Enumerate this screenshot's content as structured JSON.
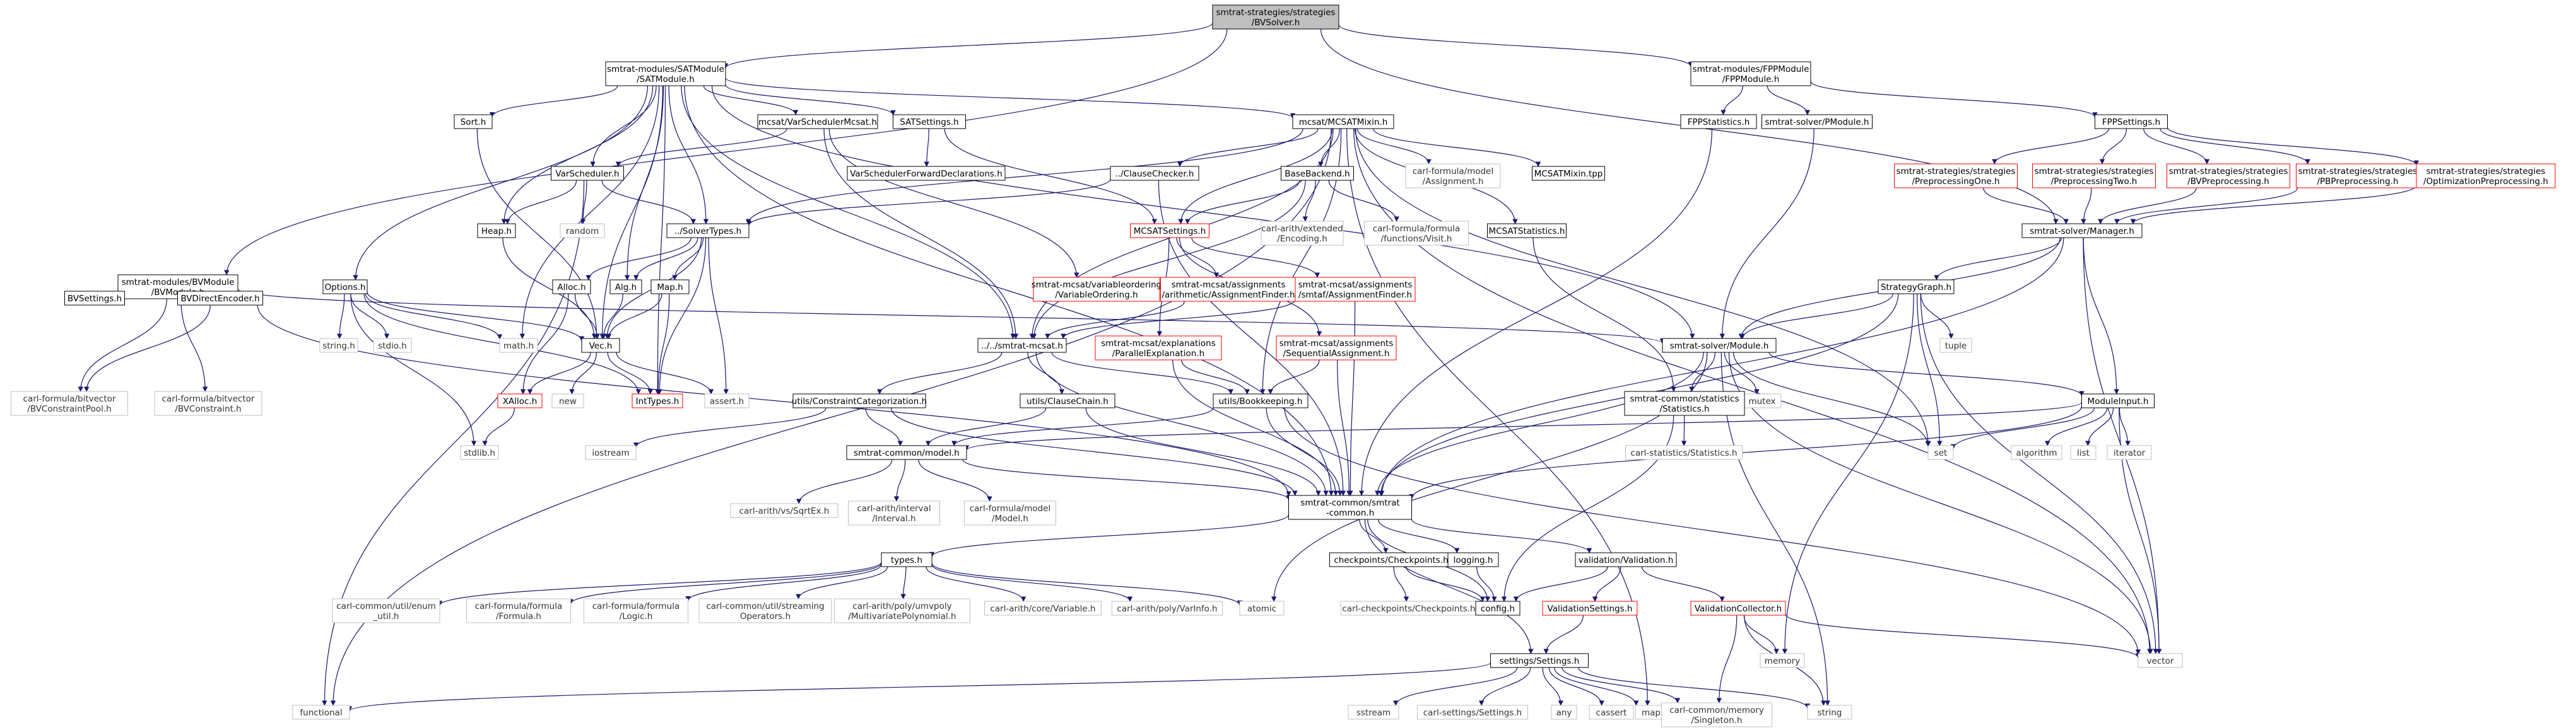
{
  "graph_title": "smtrat-strategies/strategies/BVSolver.h",
  "style": {
    "root_fill": "#bfbfbf",
    "node_border": "#000000",
    "missing_border": "#ff0000",
    "external_border": "#bfbfbf",
    "edge_color": "#191970"
  },
  "nodes": {
    "root": {
      "lines": [
        "smtrat-strategies/strategies",
        "/BVSolver.h"
      ],
      "kind": "root"
    },
    "sat": {
      "lines": [
        "smtrat-modules/SATModule",
        "/SATModule.h"
      ],
      "kind": "normal"
    },
    "fpp": {
      "lines": [
        "smtrat-modules/FPPModule",
        "/FPPModule.h"
      ],
      "kind": "normal"
    },
    "bvmod": {
      "lines": [
        "smtrat-modules/BVModule",
        "/BVModule.h"
      ],
      "kind": "normal"
    },
    "sort": {
      "lines": [
        "Sort.h"
      ],
      "kind": "normal"
    },
    "vsmcsat": {
      "lines": [
        "mcsat/VarSchedulerMcsat.h"
      ],
      "kind": "normal"
    },
    "satset": {
      "lines": [
        "SATSettings.h"
      ],
      "kind": "normal"
    },
    "mcsatmixin": {
      "lines": [
        "mcsat/MCSATMixin.h"
      ],
      "kind": "normal"
    },
    "fppstat": {
      "lines": [
        "FPPStatistics.h"
      ],
      "kind": "normal"
    },
    "pmodule": {
      "lines": [
        "smtrat-solver/PModule.h"
      ],
      "kind": "normal"
    },
    "fppset": {
      "lines": [
        "FPPSettings.h"
      ],
      "kind": "normal"
    },
    "varsched": {
      "lines": [
        "VarScheduler.h"
      ],
      "kind": "normal"
    },
    "vsfwd": {
      "lines": [
        "VarSchedulerForwardDeclarations.h"
      ],
      "kind": "normal"
    },
    "clausechecker": {
      "lines": [
        "../ClauseChecker.h"
      ],
      "kind": "normal"
    },
    "basebackend": {
      "lines": [
        "BaseBackend.h"
      ],
      "kind": "normal"
    },
    "carlassign": {
      "lines": [
        "carl-formula/model",
        "/Assignment.h"
      ],
      "kind": "external"
    },
    "mcsatmixintpp": {
      "lines": [
        "MCSATMixin.tpp"
      ],
      "kind": "normal"
    },
    "pre1": {
      "lines": [
        "smtrat-strategies/strategies",
        "/PreprocessingOne.h"
      ],
      "kind": "missing"
    },
    "pre2": {
      "lines": [
        "smtrat-strategies/strategies",
        "/PreprocessingTwo.h"
      ],
      "kind": "missing"
    },
    "bvpre": {
      "lines": [
        "smtrat-strategies/strategies",
        "/BVPreprocessing.h"
      ],
      "kind": "missing"
    },
    "pbpre": {
      "lines": [
        "smtrat-strategies/strategies",
        "/PBPreprocessing.h"
      ],
      "kind": "missing"
    },
    "optpre": {
      "lines": [
        "smtrat-strategies/strategies",
        "/OptimizationPreprocessing.h"
      ],
      "kind": "missing"
    },
    "heap": {
      "lines": [
        "Heap.h"
      ],
      "kind": "normal"
    },
    "random": {
      "lines": [
        "random"
      ],
      "kind": "external"
    },
    "solvertypes": {
      "lines": [
        "../SolverTypes.h"
      ],
      "kind": "normal"
    },
    "mcsatset": {
      "lines": [
        "MCSATSettings.h"
      ],
      "kind": "missing"
    },
    "carlextended": {
      "lines": [
        "carl-arith/extended",
        "/Encoding.h"
      ],
      "kind": "external"
    },
    "carlvisit": {
      "lines": [
        "carl-formula/formula",
        "/functions/Visit.h"
      ],
      "kind": "external"
    },
    "mcsatstat": {
      "lines": [
        "MCSATStatistics.h"
      ],
      "kind": "normal"
    },
    "manager": {
      "lines": [
        "smtrat-solver/Manager.h"
      ],
      "kind": "normal"
    },
    "options": {
      "lines": [
        "Options.h"
      ],
      "kind": "normal"
    },
    "bvsettings": {
      "lines": [
        "BVSettings.h"
      ],
      "kind": "normal"
    },
    "bvdirect": {
      "lines": [
        "BVDirectEncoder.h"
      ],
      "kind": "normal"
    },
    "alloc": {
      "lines": [
        "Alloc.h"
      ],
      "kind": "normal"
    },
    "alg": {
      "lines": [
        "Alg.h"
      ],
      "kind": "normal"
    },
    "maph": {
      "lines": [
        "Map.h"
      ],
      "kind": "normal"
    },
    "varorder": {
      "lines": [
        "smtrat-mcsat/variableordering",
        "/VariableOrdering.h"
      ],
      "kind": "missing"
    },
    "arithassign": {
      "lines": [
        "smtrat-mcsat/assignments",
        "/arithmetic/AssignmentFinder.h"
      ],
      "kind": "missing"
    },
    "smtlibassign": {
      "lines": [
        "smtrat-mcsat/assignments",
        "/smtaf/AssignmentFinder.h"
      ],
      "kind": "missing"
    },
    "stratgraph": {
      "lines": [
        "StrategyGraph.h"
      ],
      "kind": "normal"
    },
    "stringh": {
      "lines": [
        "string.h"
      ],
      "kind": "external"
    },
    "stdio": {
      "lines": [
        "stdio.h"
      ],
      "kind": "external"
    },
    "math": {
      "lines": [
        "math.h"
      ],
      "kind": "external"
    },
    "vec": {
      "lines": [
        "Vec.h"
      ],
      "kind": "normal"
    },
    "smtratmcsat": {
      "lines": [
        "../../smtrat-mcsat.h"
      ],
      "kind": "normal"
    },
    "parexp": {
      "lines": [
        "smtrat-mcsat/explanations",
        "/ParallelExplanation.h"
      ],
      "kind": "missing"
    },
    "seqassign": {
      "lines": [
        "smtrat-mcsat/assignments",
        "/SequentialAssignment.h"
      ],
      "kind": "missing"
    },
    "solvermodule": {
      "lines": [
        "smtrat-solver/Module.h"
      ],
      "kind": "normal"
    },
    "tuple": {
      "lines": [
        "tuple"
      ],
      "kind": "external"
    },
    "bvpool": {
      "lines": [
        "carl-formula/bitvector",
        "/BVConstraintPool.h"
      ],
      "kind": "external"
    },
    "bvconstraint": {
      "lines": [
        "carl-formula/bitvector",
        "/BVConstraint.h"
      ],
      "kind": "external"
    },
    "xalloc": {
      "lines": [
        "XAlloc.h"
      ],
      "kind": "missing"
    },
    "new": {
      "lines": [
        "new"
      ],
      "kind": "external"
    },
    "inttypes": {
      "lines": [
        "IntTypes.h"
      ],
      "kind": "missing"
    },
    "assert": {
      "lines": [
        "assert.h"
      ],
      "kind": "external"
    },
    "constcat": {
      "lines": [
        "utils/ConstraintCategorization.h"
      ],
      "kind": "normal"
    },
    "clausechain": {
      "lines": [
        "utils/ClauseChain.h"
      ],
      "kind": "normal"
    },
    "bookkeeping": {
      "lines": [
        "utils/Bookkeeping.h"
      ],
      "kind": "normal"
    },
    "mutex": {
      "lines": [
        "mutex"
      ],
      "kind": "external"
    },
    "statsh": {
      "lines": [
        "smtrat-common/statistics",
        "/Statistics.h"
      ],
      "kind": "normal"
    },
    "moduleinput": {
      "lines": [
        "ModuleInput.h"
      ],
      "kind": "normal"
    },
    "stdlib": {
      "lines": [
        "stdlib.h"
      ],
      "kind": "external"
    },
    "iostream": {
      "lines": [
        "iostream"
      ],
      "kind": "external"
    },
    "commonmodel": {
      "lines": [
        "smtrat-common/model.h"
      ],
      "kind": "normal"
    },
    "carlstats": {
      "lines": [
        "carl-statistics/Statistics.h"
      ],
      "kind": "external"
    },
    "set": {
      "lines": [
        "set"
      ],
      "kind": "external"
    },
    "algorithm": {
      "lines": [
        "algorithm"
      ],
      "kind": "external"
    },
    "list": {
      "lines": [
        "list"
      ],
      "kind": "external"
    },
    "iterator": {
      "lines": [
        "iterator"
      ],
      "kind": "external"
    },
    "sqrtex": {
      "lines": [
        "carl-arith/vs/SqrtEx.h"
      ],
      "kind": "external"
    },
    "interval": {
      "lines": [
        "carl-arith/interval",
        "/Interval.h"
      ],
      "kind": "external"
    },
    "modelh": {
      "lines": [
        "carl-formula/model",
        "/Model.h"
      ],
      "kind": "external"
    },
    "common": {
      "lines": [
        "smtrat-common/smtrat",
        "-common.h"
      ],
      "kind": "normal"
    },
    "types": {
      "lines": [
        "types.h"
      ],
      "kind": "normal"
    },
    "checkpoints": {
      "lines": [
        "checkpoints/Checkpoints.h"
      ],
      "kind": "normal"
    },
    "logging": {
      "lines": [
        "logging.h"
      ],
      "kind": "normal"
    },
    "validation": {
      "lines": [
        "validation/Validation.h"
      ],
      "kind": "normal"
    },
    "enumutil": {
      "lines": [
        "carl-common/util/enum",
        "_util.h"
      ],
      "kind": "external"
    },
    "formula": {
      "lines": [
        "carl-formula/formula",
        "/Formula.h"
      ],
      "kind": "external"
    },
    "logic": {
      "lines": [
        "carl-formula/formula",
        "/Logic.h"
      ],
      "kind": "external"
    },
    "streaming": {
      "lines": [
        "carl-common/util/streaming",
        "Operators.h"
      ],
      "kind": "external"
    },
    "multipoly": {
      "lines": [
        "carl-arith/poly/umvpoly",
        "/MultivariatePolynomial.h"
      ],
      "kind": "external"
    },
    "variable": {
      "lines": [
        "carl-arith/core/Variable.h"
      ],
      "kind": "external"
    },
    "varinfo": {
      "lines": [
        "carl-arith/poly/VarInfo.h"
      ],
      "kind": "external"
    },
    "atomic": {
      "lines": [
        "atomic"
      ],
      "kind": "external"
    },
    "carlcheck": {
      "lines": [
        "carl-checkpoints/Checkpoints.h"
      ],
      "kind": "external"
    },
    "config": {
      "lines": [
        "config.h"
      ],
      "kind": "normal"
    },
    "valsettings": {
      "lines": [
        "ValidationSettings.h"
      ],
      "kind": "missing"
    },
    "valcollector": {
      "lines": [
        "ValidationCollector.h"
      ],
      "kind": "missing"
    },
    "memory": {
      "lines": [
        "memory"
      ],
      "kind": "external"
    },
    "vector": {
      "lines": [
        "vector"
      ],
      "kind": "external"
    },
    "settings": {
      "lines": [
        "settings/Settings.h"
      ],
      "kind": "normal"
    },
    "functional": {
      "lines": [
        "functional"
      ],
      "kind": "external"
    },
    "sstream": {
      "lines": [
        "sstream"
      ],
      "kind": "external"
    },
    "carlsettings": {
      "lines": [
        "carl-settings/Settings.h"
      ],
      "kind": "external"
    },
    "any": {
      "lines": [
        "any"
      ],
      "kind": "external"
    },
    "cassert": {
      "lines": [
        "cassert"
      ],
      "kind": "external"
    },
    "map": {
      "lines": [
        "map"
      ],
      "kind": "external"
    },
    "singleton": {
      "lines": [
        "carl-common/memory",
        "/Singleton.h"
      ],
      "kind": "external"
    },
    "string": {
      "lines": [
        "string"
      ],
      "kind": "external"
    }
  },
  "edges": [
    [
      "root",
      "sat"
    ],
    [
      "root",
      "fpp"
    ],
    [
      "root",
      "bvmod"
    ],
    [
      "root",
      "manager"
    ],
    [
      "sat",
      "sort"
    ],
    [
      "sat",
      "vsmcsat"
    ],
    [
      "sat",
      "satset"
    ],
    [
      "sat",
      "mcsatmixin"
    ],
    [
      "sat",
      "options"
    ],
    [
      "sat",
      "varsched"
    ],
    [
      "sat",
      "heap"
    ],
    [
      "sat",
      "solvertypes"
    ],
    [
      "sat",
      "alg"
    ],
    [
      "sat",
      "vec"
    ],
    [
      "sat",
      "math"
    ],
    [
      "sat",
      "solvermodule"
    ],
    [
      "sat",
      "common"
    ],
    [
      "sat",
      "smtratmcsat"
    ],
    [
      "sat",
      "inttypes"
    ],
    [
      "fpp",
      "fppstat"
    ],
    [
      "fpp",
      "pmodule"
    ],
    [
      "fpp",
      "fppset"
    ],
    [
      "bvmod",
      "bvsettings"
    ],
    [
      "bvmod",
      "bvdirect"
    ],
    [
      "bvmod",
      "bvpool"
    ],
    [
      "bvmod",
      "bvconstraint"
    ],
    [
      "bvmod",
      "solvermodule"
    ],
    [
      "sort",
      "vec"
    ],
    [
      "vsmcsat",
      "varsched"
    ],
    [
      "vsmcsat",
      "varorder"
    ],
    [
      "vsmcsat",
      "smtratmcsat"
    ],
    [
      "satset",
      "vsfwd"
    ],
    [
      "satset",
      "mcsatset"
    ],
    [
      "mcsatmixin",
      "clausechecker"
    ],
    [
      "mcsatmixin",
      "basebackend"
    ],
    [
      "mcsatmixin",
      "carlassign"
    ],
    [
      "mcsatmixin",
      "mcsatmixintpp"
    ],
    [
      "mcsatmixin",
      "mcsatstat"
    ],
    [
      "mcsatmixin",
      "solvertypes"
    ],
    [
      "mcsatmixin",
      "smtratmcsat"
    ],
    [
      "mcsatmixin",
      "functional"
    ],
    [
      "mcsatmixin",
      "map"
    ],
    [
      "mcsatmixin",
      "set"
    ],
    [
      "mcsatmixin",
      "vector"
    ],
    [
      "mcsatmixin",
      "mcsatset"
    ],
    [
      "mcsatmixin",
      "bookkeeping"
    ],
    [
      "fppstat",
      "common"
    ],
    [
      "pmodule",
      "solvermodule"
    ],
    [
      "fppset",
      "pre1"
    ],
    [
      "fppset",
      "pre2"
    ],
    [
      "fppset",
      "bvpre"
    ],
    [
      "fppset",
      "pbpre"
    ],
    [
      "fppset",
      "optpre"
    ],
    [
      "pre1",
      "manager"
    ],
    [
      "pre2",
      "manager"
    ],
    [
      "bvpre",
      "manager"
    ],
    [
      "pbpre",
      "manager"
    ],
    [
      "optpre",
      "manager"
    ],
    [
      "varsched",
      "heap"
    ],
    [
      "varsched",
      "random"
    ],
    [
      "varsched",
      "solvertypes"
    ],
    [
      "varsched",
      "functional"
    ],
    [
      "clausechecker",
      "solvertypes"
    ],
    [
      "clausechecker",
      "common"
    ],
    [
      "basebackend",
      "mcsatset"
    ],
    [
      "basebackend",
      "carlextended"
    ],
    [
      "basebackend",
      "carlvisit"
    ],
    [
      "basebackend",
      "smtratmcsat"
    ],
    [
      "heap",
      "vec"
    ],
    [
      "solvertypes",
      "alloc"
    ],
    [
      "solvertypes",
      "alg"
    ],
    [
      "solvertypes",
      "maph"
    ],
    [
      "solvertypes",
      "vec"
    ],
    [
      "solvertypes",
      "inttypes"
    ],
    [
      "solvertypes",
      "assert"
    ],
    [
      "mcsatset",
      "arithassign"
    ],
    [
      "mcsatset",
      "smtlibassign"
    ],
    [
      "mcsatset",
      "parexp"
    ],
    [
      "mcsatset",
      "seqassign"
    ],
    [
      "mcsatstat",
      "statsh"
    ],
    [
      "manager",
      "stratgraph"
    ],
    [
      "manager",
      "solvermodule"
    ],
    [
      "manager",
      "moduleinput"
    ],
    [
      "manager",
      "common"
    ],
    [
      "manager",
      "vector"
    ],
    [
      "options",
      "stringh"
    ],
    [
      "options",
      "stdio"
    ],
    [
      "options",
      "math"
    ],
    [
      "options",
      "vec"
    ],
    [
      "options",
      "inttypes"
    ],
    [
      "options",
      "stdlib"
    ],
    [
      "bvdirect",
      "bvpool"
    ],
    [
      "bvdirect",
      "common"
    ],
    [
      "alloc",
      "xalloc"
    ],
    [
      "alloc",
      "vec"
    ],
    [
      "alg",
      "vec"
    ],
    [
      "maph",
      "vec"
    ],
    [
      "maph",
      "inttypes"
    ],
    [
      "arithassign",
      "smtratmcsat"
    ],
    [
      "smtlibassign",
      "smtratmcsat"
    ],
    [
      "smtlibassign",
      "common"
    ],
    [
      "stratgraph",
      "solvermodule"
    ],
    [
      "stratgraph",
      "tuple"
    ],
    [
      "stratgraph",
      "set"
    ],
    [
      "stratgraph",
      "vector"
    ],
    [
      "stratgraph",
      "common"
    ],
    [
      "stratgraph",
      "memory"
    ],
    [
      "vec",
      "xalloc"
    ],
    [
      "vec",
      "new"
    ],
    [
      "vec",
      "inttypes"
    ],
    [
      "vec",
      "assert"
    ],
    [
      "smtratmcsat",
      "constcat"
    ],
    [
      "smtratmcsat",
      "clausechain"
    ],
    [
      "smtratmcsat",
      "bookkeeping"
    ],
    [
      "smtratmcsat",
      "common"
    ],
    [
      "parexp",
      "bookkeeping"
    ],
    [
      "parexp",
      "common"
    ],
    [
      "seqassign",
      "bookkeeping"
    ],
    [
      "seqassign",
      "common"
    ],
    [
      "solvermodule",
      "mutex"
    ],
    [
      "solvermodule",
      "statsh"
    ],
    [
      "solvermodule",
      "moduleinput"
    ],
    [
      "solvermodule",
      "common"
    ],
    [
      "solvermodule",
      "set"
    ],
    [
      "solvermodule",
      "vector"
    ],
    [
      "solvermodule",
      "string"
    ],
    [
      "solvermodule",
      "atomic"
    ],
    [
      "xalloc",
      "stdlib"
    ],
    [
      "constcat",
      "commonmodel"
    ],
    [
      "constcat",
      "common"
    ],
    [
      "constcat",
      "iostream"
    ],
    [
      "clausechain",
      "commonmodel"
    ],
    [
      "clausechain",
      "common"
    ],
    [
      "bookkeeping",
      "commonmodel"
    ],
    [
      "bookkeeping",
      "common"
    ],
    [
      "bookkeeping",
      "vector"
    ],
    [
      "statsh",
      "carlstats"
    ],
    [
      "statsh",
      "config"
    ],
    [
      "moduleinput",
      "commonmodel"
    ],
    [
      "moduleinput",
      "set"
    ],
    [
      "moduleinput",
      "algorithm"
    ],
    [
      "moduleinput",
      "list"
    ],
    [
      "moduleinput",
      "iterator"
    ],
    [
      "moduleinput",
      "vector"
    ],
    [
      "moduleinput",
      "common"
    ],
    [
      "commonmodel",
      "sqrtex"
    ],
    [
      "commonmodel",
      "interval"
    ],
    [
      "commonmodel",
      "modelh"
    ],
    [
      "commonmodel",
      "common"
    ],
    [
      "common",
      "types"
    ],
    [
      "common",
      "checkpoints"
    ],
    [
      "common",
      "logging"
    ],
    [
      "common",
      "validation"
    ],
    [
      "common",
      "config"
    ],
    [
      "common",
      "settings"
    ],
    [
      "types",
      "enumutil"
    ],
    [
      "types",
      "formula"
    ],
    [
      "types",
      "logic"
    ],
    [
      "types",
      "streaming"
    ],
    [
      "types",
      "multipoly"
    ],
    [
      "types",
      "variable"
    ],
    [
      "types",
      "varinfo"
    ],
    [
      "types",
      "atomic"
    ],
    [
      "checkpoints",
      "carlcheck"
    ],
    [
      "checkpoints",
      "config"
    ],
    [
      "logging",
      "config"
    ],
    [
      "validation",
      "config"
    ],
    [
      "validation",
      "valsettings"
    ],
    [
      "validation",
      "valcollector"
    ],
    [
      "valsettings",
      "settings"
    ],
    [
      "valcollector",
      "memory"
    ],
    [
      "valcollector",
      "vector"
    ],
    [
      "valcollector",
      "singleton"
    ],
    [
      "valcollector",
      "string"
    ],
    [
      "settings",
      "functional"
    ],
    [
      "settings",
      "sstream"
    ],
    [
      "settings",
      "carlsettings"
    ],
    [
      "settings",
      "any"
    ],
    [
      "settings",
      "cassert"
    ],
    [
      "settings",
      "map"
    ],
    [
      "settings",
      "singleton"
    ],
    [
      "settings",
      "string"
    ]
  ]
}
